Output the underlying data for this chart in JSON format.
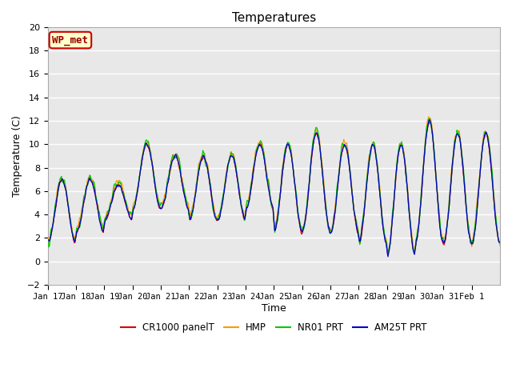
{
  "title": "Temperatures",
  "xlabel": "Time",
  "ylabel": "Temperature (C)",
  "annotation": "WP_met",
  "annotation_bg": "#ffffcc",
  "annotation_border": "#cc0000",
  "annotation_text_color": "#990000",
  "ylim": [
    -2,
    20
  ],
  "plot_bg_color": "#e8e8e8",
  "grid_color": "#ffffff",
  "series": [
    {
      "label": "CR1000 panelT",
      "color": "#dd0000"
    },
    {
      "label": "HMP",
      "color": "#ff9900"
    },
    {
      "label": "NR01 PRT",
      "color": "#00cc00"
    },
    {
      "label": "AM25T PRT",
      "color": "#0000cc"
    }
  ],
  "xtick_labels": [
    "Jan 17",
    "Jan 18",
    "Jan 19",
    "Jan 20",
    "Jan 21",
    "Jan 22",
    "Jan 23",
    "Jan 24",
    "Jan 25",
    "Jan 26",
    "Jan 27",
    "Jan 28",
    "Jan 29",
    "Jan 30",
    "Jan 31",
    "Feb 1"
  ],
  "xtick_positions": [
    0,
    1,
    2,
    3,
    4,
    5,
    6,
    7,
    8,
    9,
    10,
    11,
    12,
    13,
    14,
    15
  ],
  "n_days": 16,
  "pts_per_day": 48
}
